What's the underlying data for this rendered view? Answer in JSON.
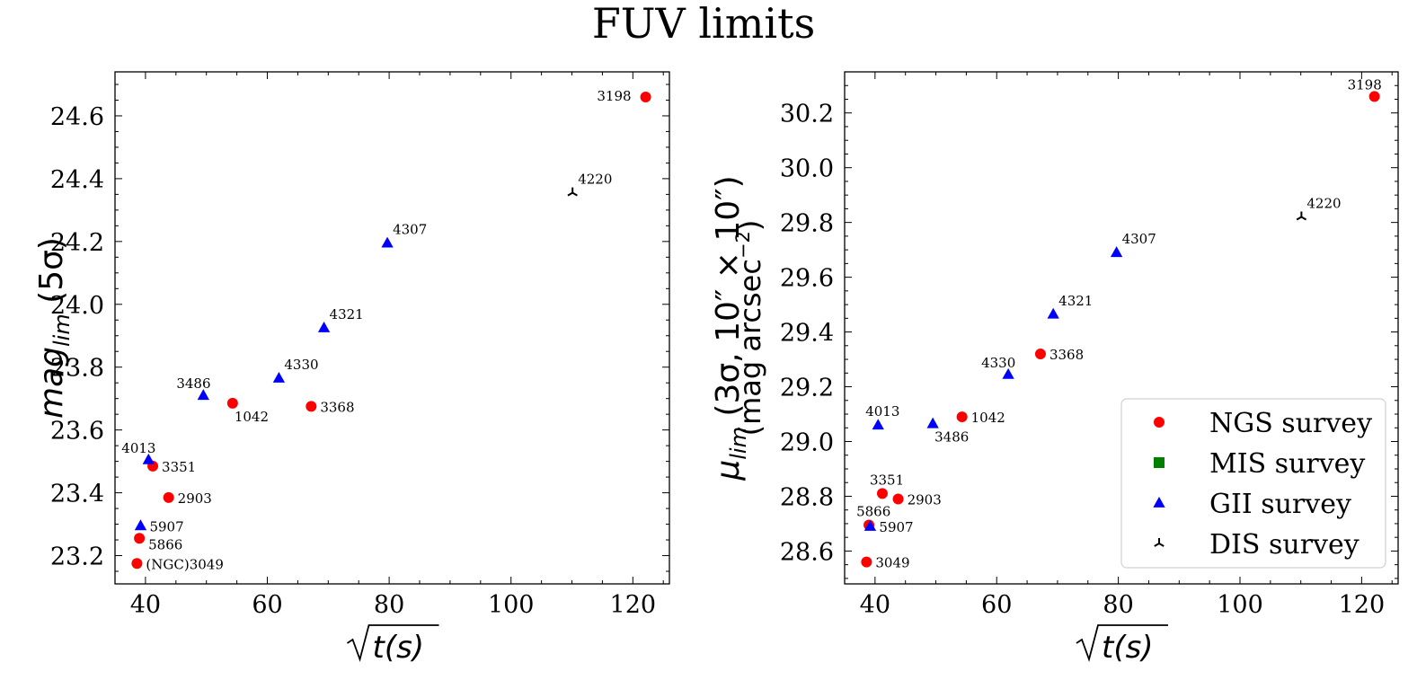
{
  "title": "FUV limits",
  "chart_data": [
    {
      "type": "scatter",
      "xlabel": "√t(s)",
      "ylabel_main": "mag",
      "ylabel_sub": "lim",
      "ylabel_tail": "(5σ)",
      "xlim": [
        35,
        126
      ],
      "ylim": [
        23.11,
        24.74
      ],
      "xticks": [
        "40",
        "60",
        "80",
        "100",
        "120"
      ],
      "xtick_values": [
        40,
        60,
        80,
        100,
        120
      ],
      "yticks": [
        "23.2",
        "23.4",
        "23.6",
        "23.8",
        "24.0",
        "24.2",
        "24.4",
        "24.6"
      ],
      "ytick_values": [
        23.2,
        23.4,
        23.6,
        23.8,
        24.0,
        24.2,
        24.4,
        24.6
      ],
      "series": [
        {
          "name": "NGS survey",
          "marker": "circle",
          "color": "#ff0000",
          "points": [
            {
              "label": "3198",
              "x": 122.1,
              "y": 24.66,
              "anchor": "left"
            },
            {
              "label": "1042",
              "x": 54.3,
              "y": 23.685,
              "anchor": "below"
            },
            {
              "label": "3368",
              "x": 67.2,
              "y": 23.675,
              "anchor": "right"
            },
            {
              "label": "3351",
              "x": 41.2,
              "y": 23.485,
              "anchor": "right"
            },
            {
              "label": "2903",
              "x": 43.8,
              "y": 23.385,
              "anchor": "right"
            },
            {
              "label": "5866",
              "x": 39.0,
              "y": 23.255,
              "anchor": "right-below"
            },
            {
              "label": "(NGC)3049",
              "x": 38.6,
              "y": 23.175,
              "anchor": "right"
            }
          ]
        },
        {
          "name": "MIS survey",
          "marker": "square",
          "color": "#008000",
          "points": []
        },
        {
          "name": "GII survey",
          "marker": "triangle",
          "color": "#0000ff",
          "points": [
            {
              "label": "4307",
              "x": 79.7,
              "y": 24.195,
              "anchor": "above-right"
            },
            {
              "label": "4321",
              "x": 69.3,
              "y": 23.925,
              "anchor": "above-right"
            },
            {
              "label": "4330",
              "x": 61.9,
              "y": 23.765,
              "anchor": "above-right"
            },
            {
              "label": "3486",
              "x": 49.5,
              "y": 23.71,
              "anchor": "above-left"
            },
            {
              "label": "4013",
              "x": 40.5,
              "y": 23.505,
              "anchor": "above-left"
            },
            {
              "label": "5907",
              "x": 39.2,
              "y": 23.295,
              "anchor": "right"
            }
          ]
        },
        {
          "name": "DIS survey",
          "marker": "tri",
          "color": "#000000",
          "points": [
            {
              "label": "4220",
              "x": 110.1,
              "y": 24.355,
              "anchor": "above-right"
            }
          ]
        }
      ]
    },
    {
      "type": "scatter",
      "xlabel": "√t(s)",
      "ylabel_main": "μ",
      "ylabel_sub": "lim",
      "ylabel_tail": "(3σ, 10″ × 10″)",
      "ylabel_line2_pre": "(mag arcsec",
      "ylabel_line2_sup": "−2",
      "ylabel_line2_post": ")",
      "xlim": [
        35,
        126
      ],
      "ylim": [
        28.48,
        30.35
      ],
      "xticks": [
        "40",
        "60",
        "80",
        "100",
        "120"
      ],
      "xtick_values": [
        40,
        60,
        80,
        100,
        120
      ],
      "yticks": [
        "28.6",
        "28.8",
        "29.0",
        "29.2",
        "29.4",
        "29.6",
        "29.8",
        "30.0",
        "30.2"
      ],
      "ytick_values": [
        28.6,
        28.8,
        29.0,
        29.2,
        29.4,
        29.6,
        29.8,
        30.0,
        30.2
      ],
      "legend": {
        "position": "lower-right"
      },
      "series": [
        {
          "name": "NGS survey",
          "marker": "circle",
          "color": "#ff0000",
          "points": [
            {
              "label": "3198",
              "x": 122.1,
              "y": 30.26,
              "anchor": "above-left"
            },
            {
              "label": "3368",
              "x": 67.2,
              "y": 29.32,
              "anchor": "right"
            },
            {
              "label": "1042",
              "x": 54.3,
              "y": 29.09,
              "anchor": "right"
            },
            {
              "label": "3351",
              "x": 41.2,
              "y": 28.81,
              "anchor": "above"
            },
            {
              "label": "2903",
              "x": 43.8,
              "y": 28.79,
              "anchor": "right"
            },
            {
              "label": "3049",
              "x": 38.6,
              "y": 28.56,
              "anchor": "right"
            },
            {
              "label": "5866",
              "x": 39.0,
              "y": 28.695,
              "anchor": "above"
            }
          ]
        },
        {
          "name": "MIS survey",
          "marker": "square",
          "color": "#008000",
          "points": []
        },
        {
          "name": "GII survey",
          "marker": "triangle",
          "color": "#0000ff",
          "points": [
            {
              "label": "4307",
              "x": 79.7,
              "y": 29.69,
              "anchor": "above-right"
            },
            {
              "label": "4321",
              "x": 69.3,
              "y": 29.465,
              "anchor": "above-right"
            },
            {
              "label": "4330",
              "x": 61.9,
              "y": 29.245,
              "anchor": "above-left"
            },
            {
              "label": "3486",
              "x": 49.5,
              "y": 29.065,
              "anchor": "below"
            },
            {
              "label": "4013",
              "x": 40.5,
              "y": 29.06,
              "anchor": "above"
            },
            {
              "label": "5907",
              "x": 39.2,
              "y": 28.69,
              "anchor": "right"
            }
          ]
        },
        {
          "name": "DIS survey",
          "marker": "tri",
          "color": "#000000",
          "points": [
            {
              "label": "4220",
              "x": 110.1,
              "y": 29.82,
              "anchor": "above-right"
            }
          ]
        }
      ]
    }
  ]
}
